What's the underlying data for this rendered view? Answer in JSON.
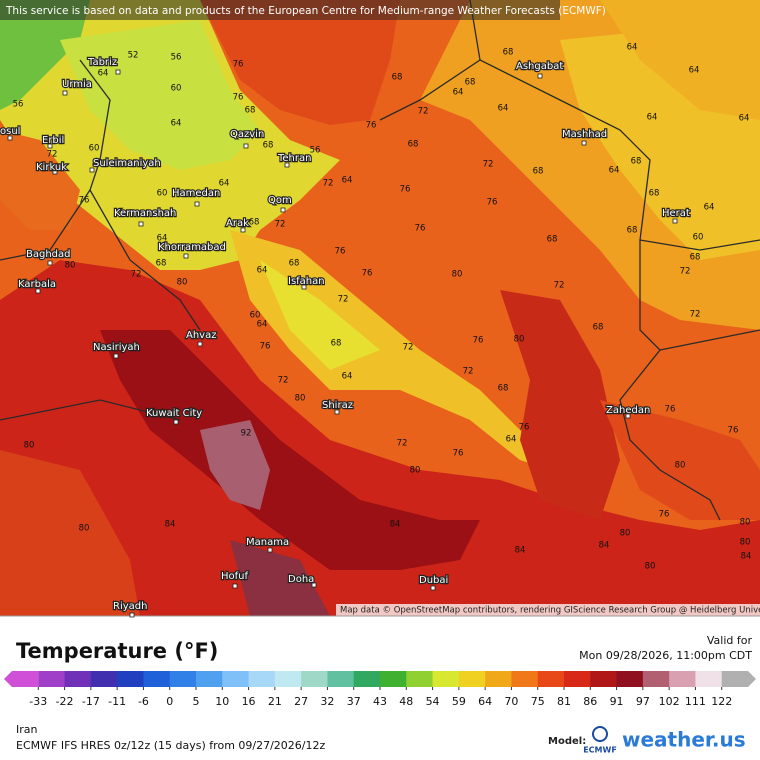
{
  "banner": "This service is based on data and products of the European Centre for Medium-range Weather Forecasts (ECMWF)",
  "attribution": "Map data © OpenStreetMap contributors, rendering GIScience Research Group @ Heidelberg University",
  "cities": [
    "Tabriz",
    "Urmia",
    "osul",
    "Erbil",
    "Kirkuk",
    "Suleimaniyah",
    "Qazvin",
    "Tehran",
    "Hamedan",
    "Kermanshah",
    "Arak",
    "Qom",
    "Khorramabad",
    "Baghdad",
    "Karbala",
    "Isfahan",
    "Ahvaz",
    "Nasiriyah",
    "Kuwait City",
    "Shiraz",
    "Zahedan",
    "Herat",
    "Mashhad",
    "Ashgabat",
    "Manama",
    "Hofuf",
    "Doha",
    "Dubai",
    "Riyadh"
  ],
  "contour_labels": [
    52,
    64,
    56,
    76,
    68,
    68,
    64,
    64,
    56,
    60,
    76,
    68,
    64,
    68,
    64,
    72,
    76,
    64,
    68,
    56,
    72,
    60,
    68,
    72,
    68,
    64,
    68,
    64,
    64,
    64,
    60,
    72,
    64,
    76,
    76,
    68,
    72,
    76,
    68,
    68,
    60,
    64,
    68,
    72,
    76,
    64,
    68,
    72,
    68,
    64,
    68,
    76,
    76,
    80,
    80,
    72,
    72,
    60,
    64,
    76,
    68,
    72,
    76,
    80,
    68,
    72,
    72,
    64,
    68,
    72,
    80,
    76,
    64,
    72,
    76,
    80,
    92,
    76,
    76,
    80,
    76,
    80,
    84,
    80,
    84,
    80,
    84,
    80,
    84,
    80,
    84,
    80,
    80
  ],
  "legend": {
    "title": "Temperature (°F)",
    "ticks": [
      -33,
      -22,
      -17,
      -11,
      -6,
      0,
      5,
      10,
      16,
      21,
      27,
      32,
      37,
      43,
      48,
      54,
      59,
      64,
      70,
      75,
      81,
      86,
      91,
      97,
      102,
      111,
      122
    ],
    "colors": [
      "#d050d8",
      "#a040c8",
      "#7030b8",
      "#4030b0",
      "#2040c0",
      "#2060d8",
      "#3080e8",
      "#50a0f0",
      "#80c0f8",
      "#a8d8f8",
      "#c0e8f0",
      "#a0d8c8",
      "#60c0a0",
      "#30a860",
      "#40b030",
      "#90d030",
      "#d8e830",
      "#f0d020",
      "#f0a818",
      "#f07818",
      "#e84818",
      "#d82818",
      "#b01818",
      "#901020",
      "#b06070",
      "#d8a0b0",
      "#f0e0e8",
      "#b0b0b0"
    ]
  },
  "valid_label": "Valid for",
  "valid_time": "Mon 09/28/2026, 11:00pm CDT",
  "region": "Iran",
  "model_run": "ECMWF IFS HRES 0z/12z (15 days) from 09/27/2026/12z",
  "model_label": "Model:",
  "model_name": "ECMWF",
  "brand": "weather.us"
}
